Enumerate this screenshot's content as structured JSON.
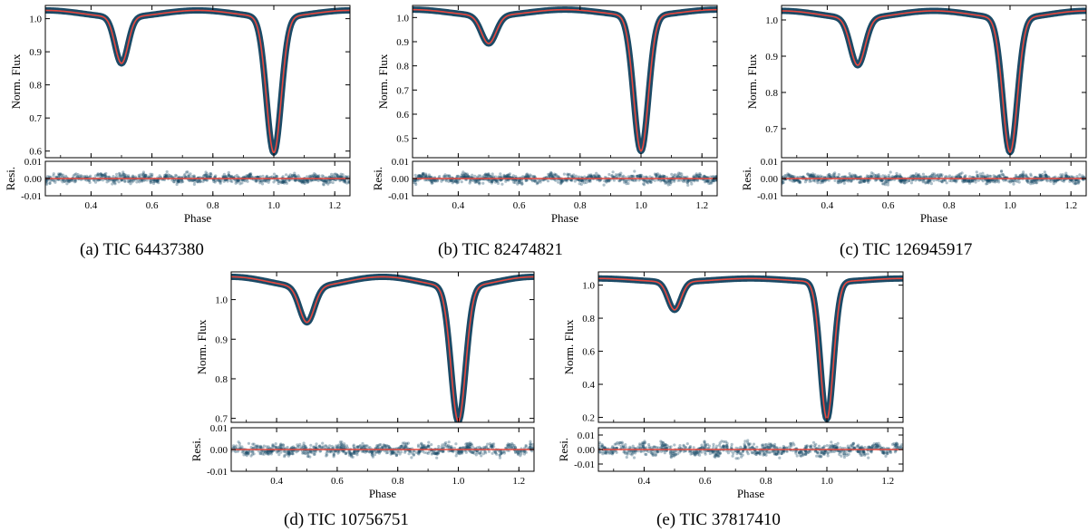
{
  "colors": {
    "data": "#1b4a66",
    "model": "#e8483f",
    "axis": "#000000"
  },
  "chart_data": [
    {
      "type": "line",
      "caption": "(a) TIC 64437380",
      "xlabel": "Phase",
      "ylabel_top": "Norm. Flux",
      "ylabel_bottom": "Resi.",
      "xlim": [
        0.25,
        1.25
      ],
      "xticks": [
        "0.4",
        "0.6",
        "0.8",
        "1.0",
        "1.2"
      ],
      "ylim_top": [
        0.58,
        1.04
      ],
      "yticks_top": [
        "0.6",
        "0.7",
        "0.8",
        "0.9",
        "1.0"
      ],
      "ylim_bottom": [
        -0.01,
        0.01
      ],
      "yticks_bottom": [
        "-0.01",
        "0.00",
        "0.01"
      ],
      "params": {
        "primary_depth": 0.41,
        "primary_width": 0.034,
        "secondary_depth": 0.14,
        "secondary_width": 0.03,
        "baseline": 1.015,
        "ellipsoidal": 0.02
      },
      "residual_spread": 0.003,
      "series": [
        {
          "name": "data"
        },
        {
          "name": "model"
        }
      ]
    },
    {
      "type": "line",
      "caption": "(b) TIC 82474821",
      "xlabel": "Phase",
      "ylabel_top": "Norm. Flux",
      "ylabel_bottom": "Resi.",
      "xlim": [
        0.25,
        1.25
      ],
      "xticks": [
        "0.4",
        "0.6",
        "0.8",
        "1.0",
        "1.2"
      ],
      "ylim_top": [
        0.42,
        1.05
      ],
      "yticks_top": [
        "0.5",
        "0.6",
        "0.7",
        "0.8",
        "0.9",
        "1.0"
      ],
      "ylim_bottom": [
        -0.01,
        0.01
      ],
      "yticks_bottom": [
        "-0.01",
        "0.00",
        "0.01"
      ],
      "params": {
        "primary_depth": 0.56,
        "primary_width": 0.034,
        "secondary_depth": 0.115,
        "secondary_width": 0.034,
        "baseline": 1.02,
        "ellipsoidal": 0.025
      },
      "residual_spread": 0.003,
      "series": [
        {
          "name": "data"
        },
        {
          "name": "model"
        }
      ]
    },
    {
      "type": "line",
      "caption": "(c) TIC 126945917",
      "xlabel": "Phase",
      "ylabel_top": "Norm. Flux",
      "ylabel_bottom": "Resi.",
      "xlim": [
        0.25,
        1.25
      ],
      "xticks": [
        "0.4",
        "0.6",
        "0.8",
        "1.0",
        "1.2"
      ],
      "ylim_top": [
        0.62,
        1.04
      ],
      "yticks_top": [
        "0.7",
        "0.8",
        "0.9",
        "1.0"
      ],
      "ylim_bottom": [
        -0.01,
        0.01
      ],
      "yticks_bottom": [
        "-0.01",
        "0.00",
        "0.01"
      ],
      "params": {
        "primary_depth": 0.37,
        "primary_width": 0.034,
        "secondary_depth": 0.13,
        "secondary_width": 0.034,
        "baseline": 1.015,
        "ellipsoidal": 0.02
      },
      "residual_spread": 0.003,
      "series": [
        {
          "name": "data"
        },
        {
          "name": "model"
        }
      ]
    },
    {
      "type": "line",
      "caption": "(d) TIC 10756751",
      "xlabel": "Phase",
      "ylabel_top": "Norm. Flux",
      "ylabel_bottom": "Resi.",
      "xlim": [
        0.25,
        1.25
      ],
      "xticks": [
        "0.4",
        "0.6",
        "0.8",
        "1.0",
        "1.2"
      ],
      "ylim_top": [
        0.69,
        1.07
      ],
      "yticks_top": [
        "0.7",
        "0.8",
        "0.9",
        "1.0"
      ],
      "ylim_bottom": [
        -0.01,
        0.01
      ],
      "yticks_bottom": [
        "-0.01",
        "0.00",
        "0.01"
      ],
      "params": {
        "primary_depth": 0.34,
        "primary_width": 0.034,
        "secondary_depth": 0.09,
        "secondary_width": 0.034,
        "baseline": 1.045,
        "ellipsoidal": 0.025
      },
      "residual_spread": 0.003,
      "series": [
        {
          "name": "data"
        },
        {
          "name": "model"
        }
      ]
    },
    {
      "type": "line",
      "caption": "(e) TIC 37817410",
      "xlabel": "Phase",
      "ylabel_top": "Norm. Flux",
      "ylabel_bottom": "Resi.",
      "xlim": [
        0.25,
        1.25
      ],
      "xticks": [
        "0.4",
        "0.6",
        "0.8",
        "1.0",
        "1.2"
      ],
      "ylim_top": [
        0.17,
        1.08
      ],
      "yticks_top": [
        "0.2",
        "0.4",
        "0.6",
        "0.8",
        "1.0"
      ],
      "ylim_bottom": [
        -0.015,
        0.015
      ],
      "yticks_bottom": [
        "-0.01",
        "0.00",
        "0.01"
      ],
      "params": {
        "primary_depth": 0.83,
        "primary_width": 0.03,
        "secondary_depth": 0.17,
        "secondary_width": 0.03,
        "baseline": 1.03,
        "ellipsoidal": 0.02
      },
      "residual_spread": 0.005,
      "series": [
        {
          "name": "data"
        },
        {
          "name": "model"
        }
      ]
    }
  ]
}
